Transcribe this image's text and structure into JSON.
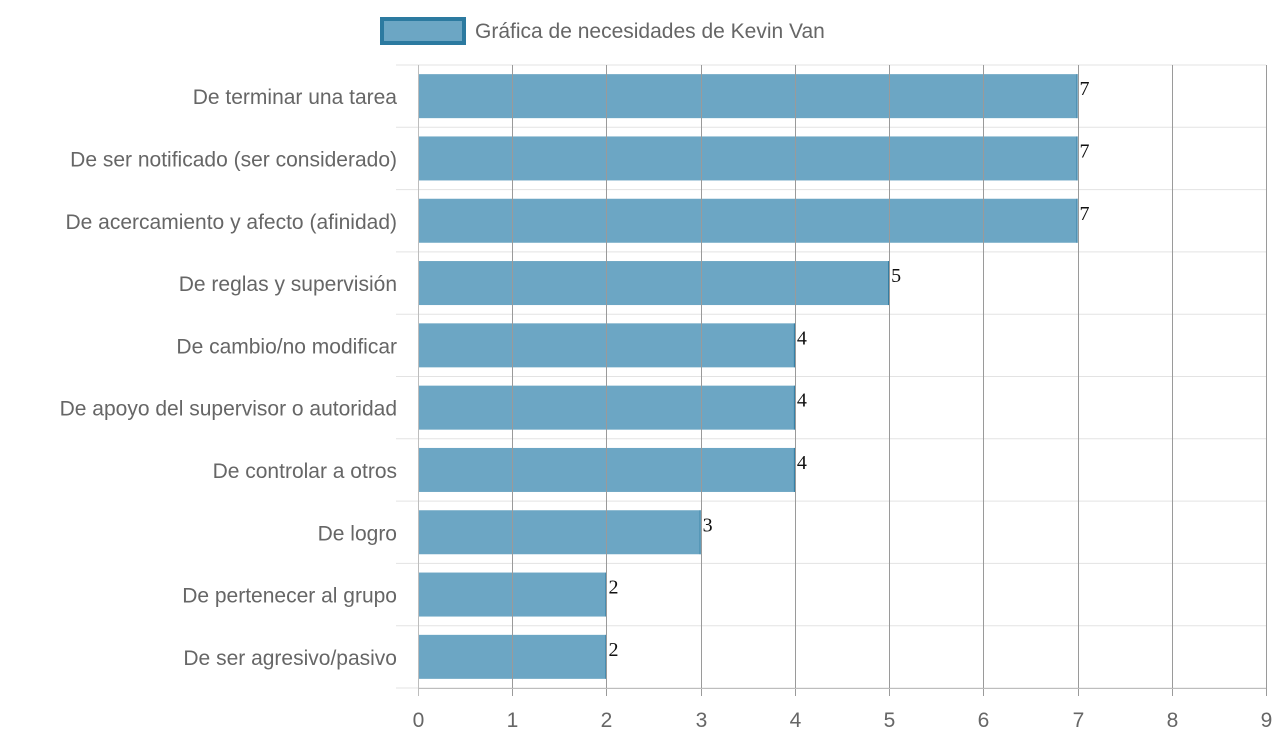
{
  "chart_data": {
    "type": "bar",
    "orientation": "horizontal",
    "categories": [
      "De terminar una tarea",
      "De ser notificado (ser considerado)",
      "De acercamiento y afecto (afinidad)",
      "De reglas y supervisión",
      "De cambio/no modificar",
      "De apoyo del supervisor o autoridad",
      "De controlar a otros",
      "De logro",
      "De pertenecer al grupo",
      "De ser agresivo/pasivo"
    ],
    "series": [
      {
        "name": "Gráfica de necesidades de Kevin Van",
        "values": [
          7,
          7,
          7,
          5,
          4,
          4,
          4,
          3,
          2,
          2
        ]
      }
    ],
    "xlim": [
      0,
      9
    ],
    "x_ticks": [
      "0",
      "1",
      "2",
      "3",
      "4",
      "5",
      "6",
      "7",
      "8",
      "9"
    ],
    "grid": true,
    "legend_position": "top",
    "data_labels": true,
    "colors": {
      "bar_fill": "#6ca6c4",
      "bar_border": "#2c7aa0",
      "grid": "#e3e3e3",
      "vgrid": "#9a9a9a"
    }
  }
}
